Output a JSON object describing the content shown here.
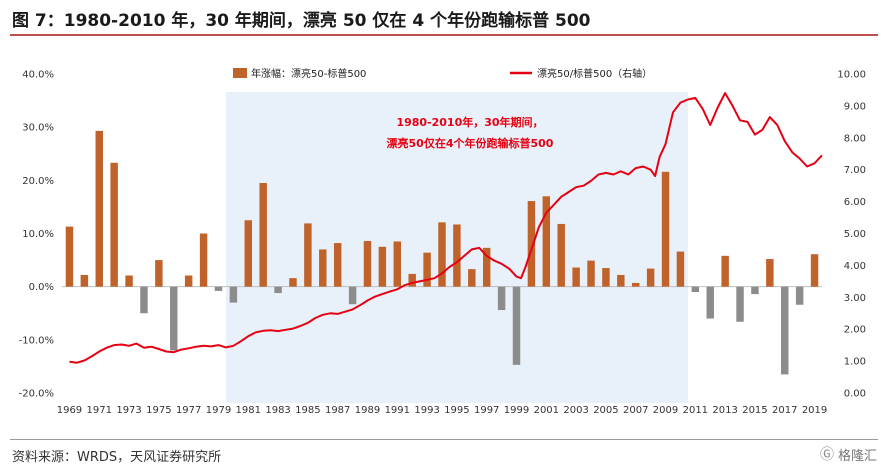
{
  "title": "图 7：1980-2010 年，30 年期间，漂亮 50 仅在 4 个年份跑输标普 500",
  "source": "资料来源：WRDS，天风证券研究所",
  "watermark": {
    "icon": "gelonghui-logo-icon",
    "text": "格隆汇"
  },
  "colors": {
    "bar_positive": "#c0632a",
    "bar_negative": "#8c8c8c",
    "line": "#e60012",
    "shade": "#e8f1fa",
    "title_rule": "#c0504d"
  },
  "chart_data": {
    "type": "bar+line",
    "left_axis": {
      "min": -0.2,
      "max": 0.4,
      "ticks": [
        "-20.0%",
        "-10.0%",
        "0.0%",
        "10.0%",
        "20.0%",
        "30.0%",
        "40.0%"
      ],
      "tick_values": [
        -0.2,
        -0.1,
        0,
        0.1,
        0.2,
        0.3,
        0.4
      ]
    },
    "right_axis": {
      "min": 0,
      "max": 10,
      "ticks": [
        "0.00",
        "1.00",
        "2.00",
        "3.00",
        "4.00",
        "5.00",
        "6.00",
        "7.00",
        "8.00",
        "9.00",
        "10.00"
      ],
      "tick_values": [
        0,
        1,
        2,
        3,
        4,
        5,
        6,
        7,
        8,
        9,
        10
      ]
    },
    "x_labels": [
      "1969",
      "1971",
      "1973",
      "1975",
      "1977",
      "1979",
      "1981",
      "1983",
      "1985",
      "1987",
      "1989",
      "1991",
      "1993",
      "1995",
      "1997",
      "1999",
      "2001",
      "2003",
      "2005",
      "2007",
      "2009",
      "2011",
      "2013",
      "2015",
      "2017",
      "2019"
    ],
    "shaded_range": [
      1980,
      2010
    ],
    "bar_series": {
      "name": "年涨幅：漂亮50-标普500",
      "years": [
        1969,
        1970,
        1971,
        1972,
        1973,
        1974,
        1975,
        1976,
        1977,
        1978,
        1979,
        1980,
        1981,
        1982,
        1983,
        1984,
        1985,
        1986,
        1987,
        1988,
        1989,
        1990,
        1991,
        1992,
        1993,
        1994,
        1995,
        1996,
        1997,
        1998,
        1999,
        2000,
        2001,
        2002,
        2003,
        2004,
        2005,
        2006,
        2007,
        2008,
        2009,
        2010,
        2011,
        2012,
        2013,
        2014,
        2015,
        2016,
        2017,
        2018,
        2019
      ],
      "values": [
        0.113,
        0.022,
        0.293,
        0.233,
        0.021,
        -0.05,
        0.05,
        -0.12,
        0.021,
        0.1,
        -0.008,
        -0.03,
        0.125,
        0.195,
        -0.012,
        0.016,
        0.119,
        0.07,
        0.082,
        -0.033,
        0.086,
        0.075,
        0.085,
        0.024,
        0.064,
        0.121,
        0.117,
        0.033,
        0.073,
        -0.044,
        -0.147,
        0.161,
        0.17,
        0.118,
        0.036,
        0.049,
        0.035,
        0.022,
        0.007,
        0.034,
        0.216,
        0.066,
        -0.01,
        -0.06,
        0.058,
        -0.066,
        -0.014,
        0.052,
        -0.165,
        -0.034,
        0.061
      ]
    },
    "line_series": {
      "name": "漂亮50/标普500（右轴）",
      "points": [
        [
          1969.0,
          0.98
        ],
        [
          1969.5,
          0.95
        ],
        [
          1970.0,
          1.02
        ],
        [
          1970.5,
          1.15
        ],
        [
          1971.0,
          1.3
        ],
        [
          1971.5,
          1.42
        ],
        [
          1972.0,
          1.5
        ],
        [
          1972.5,
          1.52
        ],
        [
          1973.0,
          1.48
        ],
        [
          1973.5,
          1.55
        ],
        [
          1974.0,
          1.42
        ],
        [
          1974.5,
          1.45
        ],
        [
          1975.0,
          1.38
        ],
        [
          1975.5,
          1.3
        ],
        [
          1976.0,
          1.28
        ],
        [
          1976.5,
          1.36
        ],
        [
          1977.0,
          1.4
        ],
        [
          1977.5,
          1.45
        ],
        [
          1978.0,
          1.48
        ],
        [
          1978.5,
          1.46
        ],
        [
          1979.0,
          1.5
        ],
        [
          1979.5,
          1.43
        ],
        [
          1980.0,
          1.48
        ],
        [
          1980.5,
          1.62
        ],
        [
          1981.0,
          1.78
        ],
        [
          1981.5,
          1.9
        ],
        [
          1982.0,
          1.95
        ],
        [
          1982.5,
          1.97
        ],
        [
          1983.0,
          1.94
        ],
        [
          1983.5,
          1.98
        ],
        [
          1984.0,
          2.02
        ],
        [
          1984.5,
          2.1
        ],
        [
          1985.0,
          2.2
        ],
        [
          1985.5,
          2.35
        ],
        [
          1986.0,
          2.45
        ],
        [
          1986.5,
          2.5
        ],
        [
          1987.0,
          2.48
        ],
        [
          1987.5,
          2.55
        ],
        [
          1988.0,
          2.62
        ],
        [
          1988.5,
          2.75
        ],
        [
          1989.0,
          2.9
        ],
        [
          1989.5,
          3.02
        ],
        [
          1990.0,
          3.1
        ],
        [
          1990.5,
          3.18
        ],
        [
          1991.0,
          3.25
        ],
        [
          1991.5,
          3.38
        ],
        [
          1992.0,
          3.45
        ],
        [
          1992.5,
          3.5
        ],
        [
          1993.0,
          3.55
        ],
        [
          1993.5,
          3.6
        ],
        [
          1994.0,
          3.75
        ],
        [
          1994.5,
          3.95
        ],
        [
          1995.0,
          4.1
        ],
        [
          1995.5,
          4.3
        ],
        [
          1996.0,
          4.5
        ],
        [
          1996.5,
          4.55
        ],
        [
          1997.0,
          4.3
        ],
        [
          1997.5,
          4.15
        ],
        [
          1998.0,
          4.05
        ],
        [
          1998.5,
          3.9
        ],
        [
          1999.0,
          3.65
        ],
        [
          1999.3,
          3.6
        ],
        [
          1999.6,
          3.95
        ],
        [
          2000.0,
          4.5
        ],
        [
          2000.5,
          5.2
        ],
        [
          2001.0,
          5.65
        ],
        [
          2001.5,
          5.9
        ],
        [
          2002.0,
          6.15
        ],
        [
          2002.5,
          6.3
        ],
        [
          2003.0,
          6.45
        ],
        [
          2003.5,
          6.5
        ],
        [
          2004.0,
          6.65
        ],
        [
          2004.5,
          6.85
        ],
        [
          2005.0,
          6.9
        ],
        [
          2005.5,
          6.85
        ],
        [
          2006.0,
          6.95
        ],
        [
          2006.5,
          6.85
        ],
        [
          2007.0,
          7.05
        ],
        [
          2007.5,
          7.1
        ],
        [
          2008.0,
          7.0
        ],
        [
          2008.3,
          6.8
        ],
        [
          2008.6,
          7.4
        ],
        [
          2009.0,
          7.8
        ],
        [
          2009.5,
          8.8
        ],
        [
          2010.0,
          9.1
        ],
        [
          2010.5,
          9.2
        ],
        [
          2011.0,
          9.25
        ],
        [
          2011.5,
          8.9
        ],
        [
          2012.0,
          8.4
        ],
        [
          2012.5,
          8.95
        ],
        [
          2013.0,
          9.4
        ],
        [
          2013.5,
          9.0
        ],
        [
          2014.0,
          8.55
        ],
        [
          2014.5,
          8.5
        ],
        [
          2015.0,
          8.1
        ],
        [
          2015.5,
          8.25
        ],
        [
          2016.0,
          8.65
        ],
        [
          2016.5,
          8.4
        ],
        [
          2017.0,
          7.9
        ],
        [
          2017.5,
          7.55
        ],
        [
          2018.0,
          7.35
        ],
        [
          2018.5,
          7.1
        ],
        [
          2019.0,
          7.2
        ],
        [
          2019.3,
          7.35
        ],
        [
          2019.5,
          7.45
        ]
      ]
    },
    "legend": {
      "bar_label": "年涨幅：漂亮50-标普500",
      "line_label": "漂亮50/标普500（右轴）",
      "position": "top"
    },
    "annotation": {
      "lines": [
        "1980-2010年，30年期间，",
        "漂亮50仅在4个年份跑输标普500"
      ]
    }
  }
}
